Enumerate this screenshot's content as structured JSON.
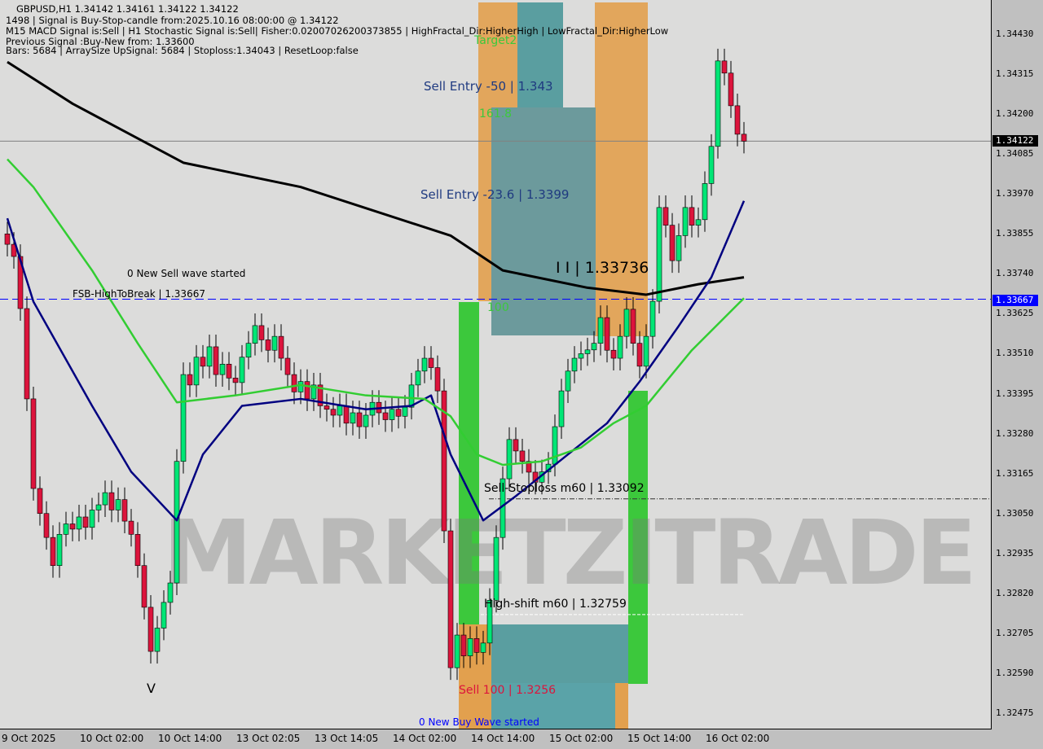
{
  "header": {
    "line1": "GBPUSD,H1  1.34142 1.34161 1.34122 1.34122",
    "line2": "1498 | Signal is Buy-Stop-candle from:2025.10.16 08:00:00 @ 1.34122",
    "line3": "M15 MACD Signal is:Sell | H1 Stochastic Signal is:Sell| Fisher:0.02007026200373855 | HighFractal_Dir:HigherHigh | LowFractal_Dir:HigherLow",
    "line4": "Previous Signal :Buy-New from: 1.33600",
    "line5": "Bars: 5684 | ArraySize UpSignal: 5684 | Stoploss:1.34043 | ResetLoop:false"
  },
  "annotations": {
    "target2": "Target2",
    "sell_entry_50": "Sell Entry -50 | 1.343",
    "fib_1618": "161.8",
    "sell_entry_236": "Sell Entry -23.6 | 1.3399",
    "level_main": "I I | 1.33736",
    "fib_100": "100",
    "new_sell_wave": "0 New Sell wave started",
    "fsb": "FSB-HighToBreak | 1.33667",
    "sell_stoploss": "Sell-Stoploss m60 | 1.33092",
    "high_shift": "High-shift m60 | 1.32759",
    "sell_100": "Sell 100 | 1.3256",
    "new_buy_wave": "0 New Buy Wave started",
    "v_mark": "V"
  },
  "watermark": "MARKETZITRADE",
  "colors": {
    "bull": "#00e676",
    "bear": "#dc143c",
    "ma_slow": "#000000",
    "ma_fast": "#000080",
    "ma_mid": "#32cd32",
    "hline": "#0000ff",
    "zone_orange": "#e8a04a",
    "zone_teal": "#4fa0a8",
    "green_bar": "#3cc83c"
  },
  "chart_data": {
    "type": "candlestick",
    "symbol": "GBPUSD",
    "timeframe": "H1",
    "ylim": [
      1.3242,
      1.3456
    ],
    "y_ticks": [
      "1.34430",
      "1.34315",
      "1.34200",
      "1.34085",
      "1.33970",
      "1.33855",
      "1.33740",
      "1.33625",
      "1.33510",
      "1.33395",
      "1.33280",
      "1.33165",
      "1.33050",
      "1.32935",
      "1.32820",
      "1.32705",
      "1.32590",
      "1.32475"
    ],
    "x_ticks": [
      "9 Oct 2025",
      "10 Oct 02:00",
      "10 Oct 14:00",
      "13 Oct 02:05",
      "13 Oct 14:05",
      "14 Oct 02:00",
      "14 Oct 14:00",
      "15 Oct 02:00",
      "15 Oct 14:00",
      "16 Oct 02:00"
    ],
    "current_price": "1.34122",
    "fsb_level": "1.33667",
    "stoploss_level": 1.33092,
    "high_shift_level": 1.32759,
    "closes": [
      1.33825,
      1.3379,
      1.3364,
      1.3338,
      1.33122,
      1.3305,
      1.32981,
      1.329,
      1.3299,
      1.3302,
      1.33005,
      1.3304,
      1.3301,
      1.3306,
      1.33075,
      1.3311,
      1.3306,
      1.3309,
      1.33028,
      1.3299,
      1.329,
      1.3278,
      1.32653,
      1.3272,
      1.32794,
      1.3285,
      1.332,
      1.3345,
      1.3342,
      1.335,
      1.33474,
      1.3353,
      1.3345,
      1.3348,
      1.3344,
      1.33427,
      1.335,
      1.3354,
      1.33591,
      1.3355,
      1.3352,
      1.3356,
      1.33497,
      1.3345,
      1.334,
      1.3343,
      1.3338,
      1.3342,
      1.3336,
      1.3335,
      1.33333,
      1.3336,
      1.3331,
      1.3334,
      1.333,
      1.33333,
      1.3337,
      1.3334,
      1.3332,
      1.3335,
      1.3333,
      1.33356,
      1.3342,
      1.3346,
      1.33497,
      1.3347,
      1.33403,
      1.33,
      1.32606,
      1.327,
      1.3264,
      1.3269,
      1.3265,
      1.32677,
      1.328,
      1.32981,
      1.3315,
      1.33263,
      1.3323,
      1.332,
      1.33169,
      1.3314,
      1.3317,
      1.33192,
      1.333,
      1.33403,
      1.3346,
      1.33497,
      1.3351,
      1.33521,
      1.3354,
      1.33614,
      1.3352,
      1.33497,
      1.3356,
      1.33638,
      1.3354,
      1.33474,
      1.3356,
      1.33661,
      1.33931,
      1.3388,
      1.33778,
      1.3385,
      1.33931,
      1.3388,
      1.33896,
      1.34,
      1.34107,
      1.34353,
      1.34318,
      1.34224,
      1.34142,
      1.34122
    ],
    "lines": [
      {
        "color": "ma_slow",
        "points": [
          [
            0,
            1.3435
          ],
          [
            10,
            1.3423
          ],
          [
            27,
            1.3406
          ],
          [
            45,
            1.3399
          ],
          [
            68,
            1.3385
          ],
          [
            76,
            1.3375
          ],
          [
            89,
            1.337
          ],
          [
            98,
            1.3368
          ],
          [
            106,
            1.3371
          ],
          [
            113,
            1.3373
          ]
        ]
      },
      {
        "color": "ma_fast",
        "points": [
          [
            0,
            1.339
          ],
          [
            4,
            1.3366
          ],
          [
            13,
            1.3336
          ],
          [
            19,
            1.3317
          ],
          [
            26,
            1.3303
          ],
          [
            30,
            1.3322
          ],
          [
            36,
            1.3336
          ],
          [
            45,
            1.3338
          ],
          [
            55,
            1.3335
          ],
          [
            62,
            1.3336
          ],
          [
            65,
            1.3339
          ],
          [
            68,
            1.3322
          ],
          [
            73,
            1.3303
          ],
          [
            78,
            1.331
          ],
          [
            86,
            1.3322
          ],
          [
            92,
            1.3331
          ],
          [
            97,
            1.3343
          ],
          [
            103,
            1.3359
          ],
          [
            108,
            1.3373
          ],
          [
            113,
            1.3395
          ]
        ]
      },
      {
        "color": "ma_mid",
        "points": [
          [
            0,
            1.3407
          ],
          [
            4,
            1.3399
          ],
          [
            13,
            1.3375
          ],
          [
            20,
            1.3354
          ],
          [
            26,
            1.3337
          ],
          [
            35,
            1.3339
          ],
          [
            45,
            1.3342
          ],
          [
            55,
            1.3339
          ],
          [
            64,
            1.3338
          ],
          [
            68,
            1.3333
          ],
          [
            72,
            1.3322
          ],
          [
            76,
            1.3319
          ],
          [
            82,
            1.332
          ],
          [
            88,
            1.3324
          ],
          [
            93,
            1.3331
          ],
          [
            98,
            1.3336
          ],
          [
            105,
            1.3352
          ],
          [
            113,
            1.3367
          ]
        ]
      }
    ]
  }
}
